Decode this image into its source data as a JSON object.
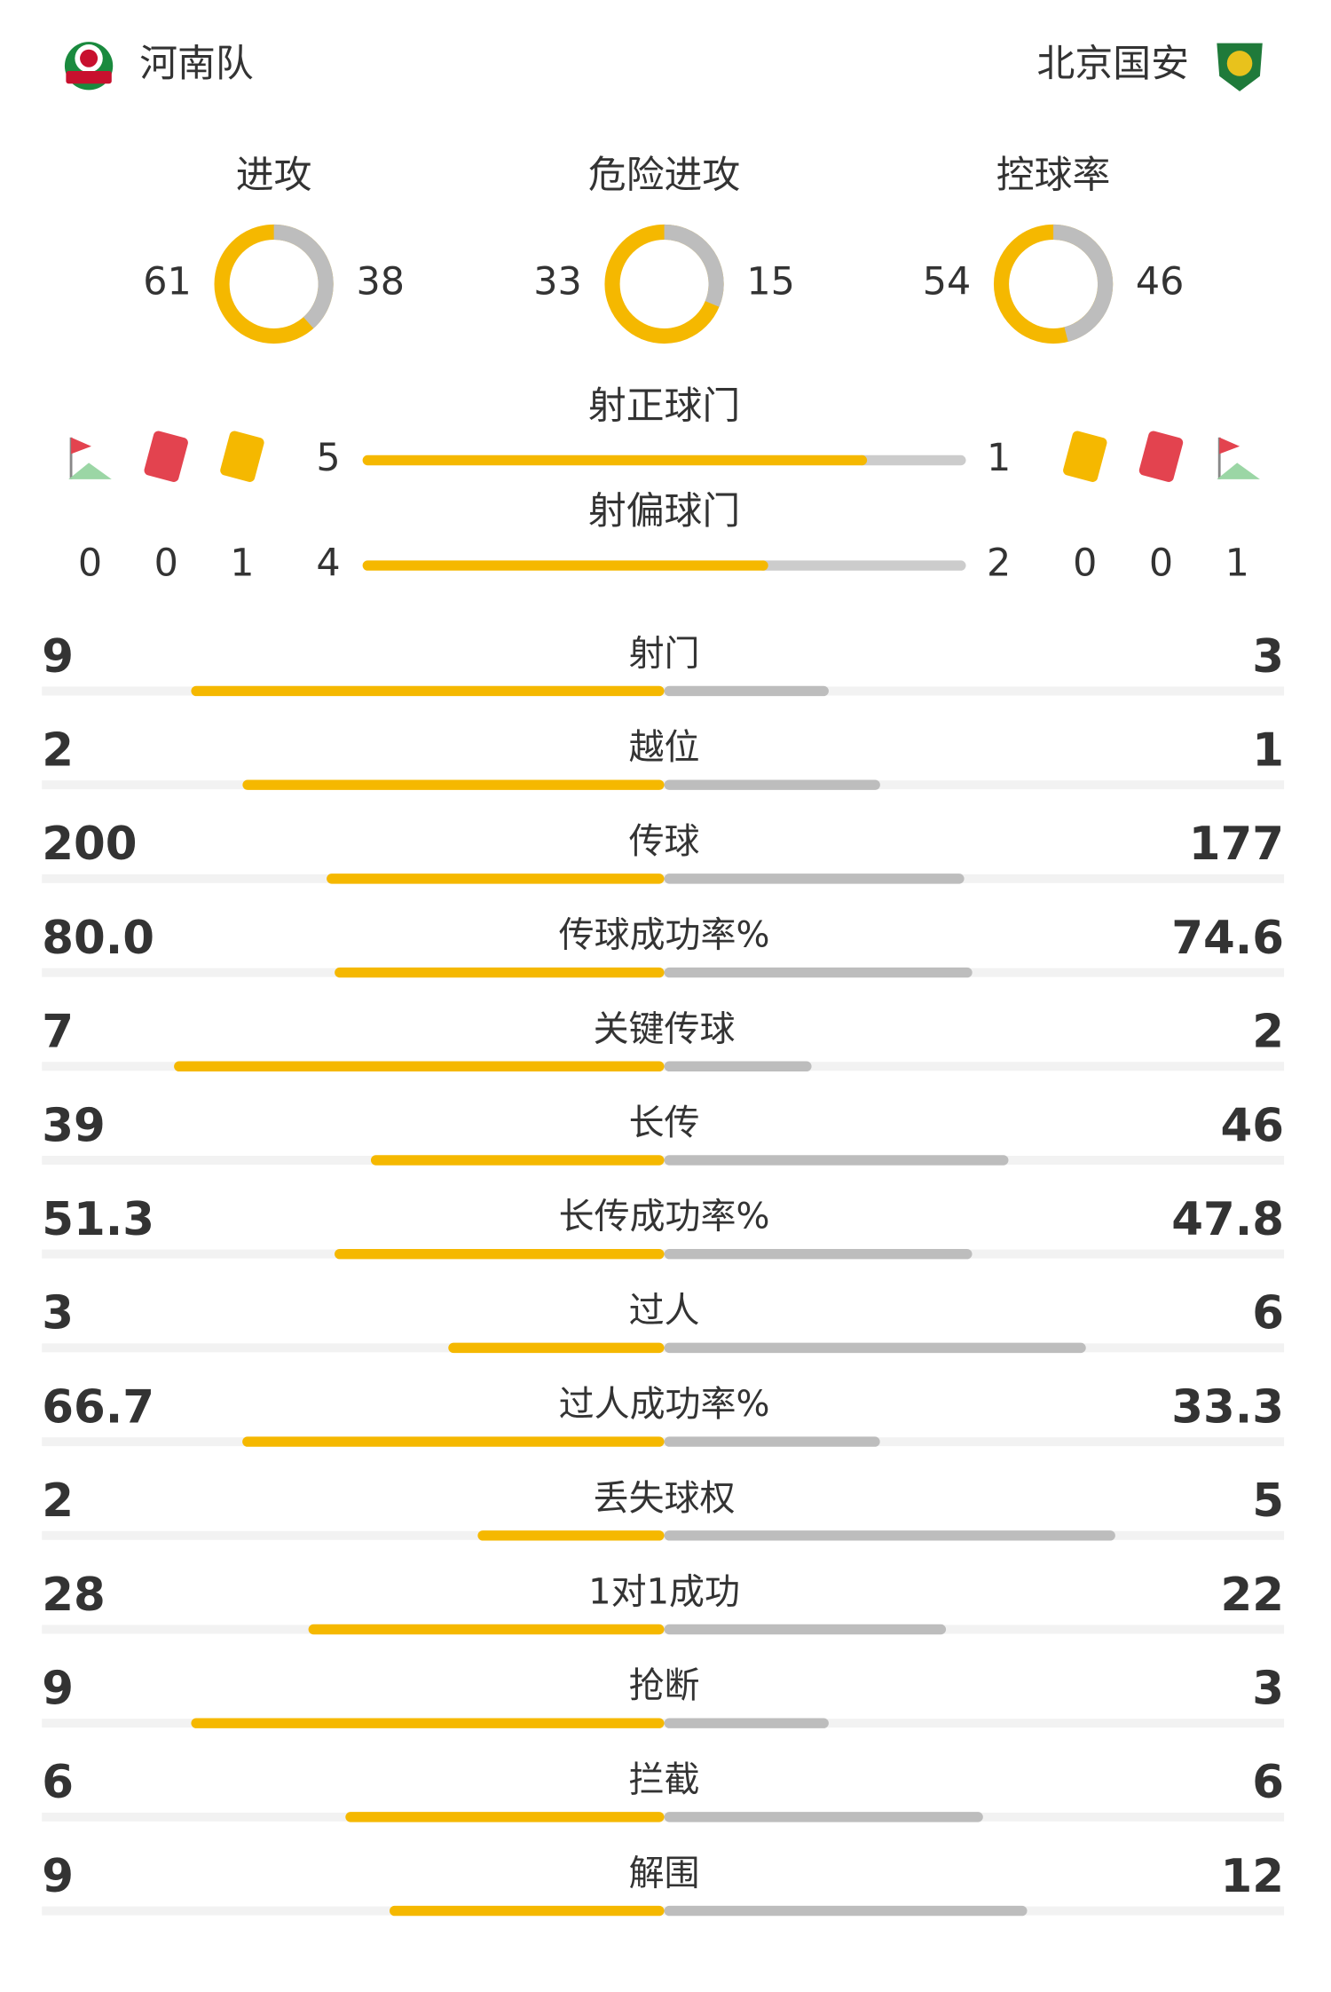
{
  "header": {
    "home_team": "河南队",
    "away_team": "北京国安"
  },
  "donuts": [
    {
      "label": "进攻",
      "home": 61,
      "away": 38
    },
    {
      "label": "危险进攻",
      "home": 33,
      "away": 15
    },
    {
      "label": "控球率",
      "home": 54,
      "away": 46
    }
  ],
  "shots": [
    {
      "label": "射正球门",
      "home": 5,
      "away": 1
    },
    {
      "label": "射偏球门",
      "home": 4,
      "away": 2
    }
  ],
  "cards": {
    "home": {
      "corners": 0,
      "red": 0,
      "yellow": 1
    },
    "away": {
      "yellow": 0,
      "red": 0,
      "corners": 1
    }
  },
  "stats": [
    {
      "label": "射门",
      "home": 9,
      "away": 3
    },
    {
      "label": "越位",
      "home": 2,
      "away": 1
    },
    {
      "label": "传球",
      "home": 200,
      "away": 177
    },
    {
      "label": "传球成功率%",
      "home": 80.0,
      "home_label": "80.0",
      "away": 74.6
    },
    {
      "label": "关键传球",
      "home": 7,
      "away": 2
    },
    {
      "label": "长传",
      "home": 39,
      "away": 46
    },
    {
      "label": "长传成功率%",
      "home": 51.3,
      "away": 47.8
    },
    {
      "label": "过人",
      "home": 3,
      "away": 6
    },
    {
      "label": "过人成功率%",
      "home": 66.7,
      "away": 33.3
    },
    {
      "label": "丢失球权",
      "home": 2,
      "away": 5
    },
    {
      "label": "1对1成功",
      "home": 28,
      "away": 22
    },
    {
      "label": "抢断",
      "home": 9,
      "away": 3
    },
    {
      "label": "拦截",
      "home": 6,
      "away": 6
    },
    {
      "label": "解围",
      "home": 9,
      "away": 12
    }
  ]
}
